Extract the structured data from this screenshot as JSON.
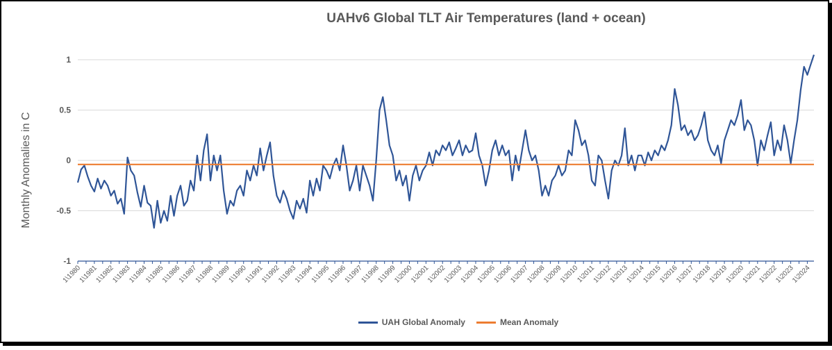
{
  "chart_data": {
    "type": "line",
    "title": "UAHv6 Global TLT Air Temperatures (land + ocean)",
    "ylabel": "Monthly Anomalies in C",
    "xlabel": "",
    "ylim": [
      -1,
      1
    ],
    "yticks": [
      1,
      0.5,
      0,
      -0.5,
      -1
    ],
    "ytick_labels": [
      "1",
      "0.5",
      "0",
      "-0.5",
      "-1"
    ],
    "grid": true,
    "legend": "bottom",
    "x_tick_labels": [
      "1\\1980",
      "1\\1981",
      "1\\1982",
      "1\\1983",
      "1\\1984",
      "1\\1985",
      "1\\1986",
      "1\\1987",
      "1\\1988",
      "1\\1989",
      "1\\1990",
      "1\\1991",
      "1\\1992",
      "1\\1993",
      "1\\1994",
      "1\\1995",
      "1\\1996",
      "1\\1997",
      "1\\1998",
      "1\\1999",
      "1\\2000",
      "1\\2001",
      "1\\2002",
      "1\\2003",
      "1\\2004",
      "1\\2005",
      "1\\2006",
      "1\\2007",
      "1\\2008",
      "1\\2009",
      "1\\2010",
      "1\\2011",
      "1\\2012",
      "1\\2013",
      "1\\2014",
      "1\\2015",
      "1\\2016",
      "1\\2017",
      "1\\2018",
      "1\\2019",
      "1\\2020",
      "1\\2021",
      "1\\2022",
      "1\\2023",
      "1\\2024"
    ],
    "series": [
      {
        "name": "UAH Global Anomaly",
        "color": "#2F5597",
        "points": [
          [
            1980.0,
            -0.22
          ],
          [
            1980.2,
            -0.09
          ],
          [
            1980.4,
            -0.05
          ],
          [
            1980.6,
            -0.16
          ],
          [
            1980.8,
            -0.25
          ],
          [
            1981.0,
            -0.31
          ],
          [
            1981.2,
            -0.18
          ],
          [
            1981.4,
            -0.28
          ],
          [
            1981.6,
            -0.2
          ],
          [
            1981.8,
            -0.25
          ],
          [
            1982.0,
            -0.35
          ],
          [
            1982.2,
            -0.3
          ],
          [
            1982.4,
            -0.43
          ],
          [
            1982.6,
            -0.38
          ],
          [
            1982.8,
            -0.53
          ],
          [
            1983.0,
            0.03
          ],
          [
            1983.2,
            -0.1
          ],
          [
            1983.4,
            -0.15
          ],
          [
            1983.6,
            -0.32
          ],
          [
            1983.8,
            -0.46
          ],
          [
            1984.0,
            -0.25
          ],
          [
            1984.2,
            -0.42
          ],
          [
            1984.4,
            -0.45
          ],
          [
            1984.6,
            -0.67
          ],
          [
            1984.8,
            -0.4
          ],
          [
            1985.0,
            -0.62
          ],
          [
            1985.2,
            -0.5
          ],
          [
            1985.4,
            -0.6
          ],
          [
            1985.6,
            -0.35
          ],
          [
            1985.8,
            -0.55
          ],
          [
            1986.0,
            -0.35
          ],
          [
            1986.2,
            -0.25
          ],
          [
            1986.4,
            -0.45
          ],
          [
            1986.6,
            -0.4
          ],
          [
            1986.8,
            -0.2
          ],
          [
            1987.0,
            -0.3
          ],
          [
            1987.2,
            0.05
          ],
          [
            1987.4,
            -0.2
          ],
          [
            1987.6,
            0.1
          ],
          [
            1987.8,
            0.26
          ],
          [
            1988.0,
            -0.2
          ],
          [
            1988.2,
            0.05
          ],
          [
            1988.4,
            -0.1
          ],
          [
            1988.6,
            0.05
          ],
          [
            1988.8,
            -0.3
          ],
          [
            1989.0,
            -0.53
          ],
          [
            1989.2,
            -0.4
          ],
          [
            1989.4,
            -0.45
          ],
          [
            1989.6,
            -0.3
          ],
          [
            1989.8,
            -0.25
          ],
          [
            1990.0,
            -0.35
          ],
          [
            1990.2,
            -0.1
          ],
          [
            1990.4,
            -0.2
          ],
          [
            1990.6,
            -0.05
          ],
          [
            1990.8,
            -0.15
          ],
          [
            1991.0,
            0.12
          ],
          [
            1991.2,
            -0.1
          ],
          [
            1991.4,
            0.05
          ],
          [
            1991.6,
            0.18
          ],
          [
            1991.8,
            -0.15
          ],
          [
            1992.0,
            -0.35
          ],
          [
            1992.2,
            -0.42
          ],
          [
            1992.4,
            -0.3
          ],
          [
            1992.6,
            -0.38
          ],
          [
            1992.8,
            -0.5
          ],
          [
            1993.0,
            -0.58
          ],
          [
            1993.2,
            -0.4
          ],
          [
            1993.4,
            -0.48
          ],
          [
            1993.6,
            -0.38
          ],
          [
            1993.8,
            -0.52
          ],
          [
            1994.0,
            -0.2
          ],
          [
            1994.2,
            -0.35
          ],
          [
            1994.4,
            -0.18
          ],
          [
            1994.6,
            -0.3
          ],
          [
            1994.8,
            -0.05
          ],
          [
            1995.0,
            -0.1
          ],
          [
            1995.2,
            -0.18
          ],
          [
            1995.4,
            -0.05
          ],
          [
            1995.6,
            0.02
          ],
          [
            1995.8,
            -0.1
          ],
          [
            1996.0,
            0.15
          ],
          [
            1996.2,
            -0.05
          ],
          [
            1996.4,
            -0.3
          ],
          [
            1996.6,
            -0.2
          ],
          [
            1996.8,
            -0.05
          ],
          [
            1997.0,
            -0.3
          ],
          [
            1997.2,
            -0.05
          ],
          [
            1997.4,
            -0.15
          ],
          [
            1997.6,
            -0.25
          ],
          [
            1997.8,
            -0.4
          ],
          [
            1998.0,
            0.0
          ],
          [
            1998.2,
            0.5
          ],
          [
            1998.4,
            0.63
          ],
          [
            1998.6,
            0.4
          ],
          [
            1998.8,
            0.15
          ],
          [
            1999.0,
            0.05
          ],
          [
            1999.2,
            -0.2
          ],
          [
            1999.4,
            -0.1
          ],
          [
            1999.6,
            -0.25
          ],
          [
            1999.8,
            -0.15
          ],
          [
            2000.0,
            -0.4
          ],
          [
            2000.2,
            -0.15
          ],
          [
            2000.4,
            -0.05
          ],
          [
            2000.6,
            -0.2
          ],
          [
            2000.8,
            -0.1
          ],
          [
            2001.0,
            -0.05
          ],
          [
            2001.2,
            0.08
          ],
          [
            2001.4,
            -0.05
          ],
          [
            2001.6,
            0.1
          ],
          [
            2001.8,
            0.05
          ],
          [
            2002.0,
            0.15
          ],
          [
            2002.2,
            0.1
          ],
          [
            2002.4,
            0.18
          ],
          [
            2002.6,
            0.05
          ],
          [
            2002.8,
            0.12
          ],
          [
            2003.0,
            0.2
          ],
          [
            2003.2,
            0.05
          ],
          [
            2003.4,
            0.15
          ],
          [
            2003.6,
            0.08
          ],
          [
            2003.8,
            0.1
          ],
          [
            2004.0,
            0.27
          ],
          [
            2004.2,
            0.05
          ],
          [
            2004.4,
            -0.05
          ],
          [
            2004.6,
            -0.25
          ],
          [
            2004.8,
            -0.1
          ],
          [
            2005.0,
            0.1
          ],
          [
            2005.2,
            0.2
          ],
          [
            2005.4,
            0.05
          ],
          [
            2005.6,
            0.15
          ],
          [
            2005.8,
            0.05
          ],
          [
            2006.0,
            0.1
          ],
          [
            2006.2,
            -0.2
          ],
          [
            2006.4,
            0.05
          ],
          [
            2006.6,
            -0.1
          ],
          [
            2006.8,
            0.1
          ],
          [
            2007.0,
            0.3
          ],
          [
            2007.2,
            0.1
          ],
          [
            2007.4,
            0.0
          ],
          [
            2007.6,
            0.05
          ],
          [
            2007.8,
            -0.1
          ],
          [
            2008.0,
            -0.35
          ],
          [
            2008.2,
            -0.25
          ],
          [
            2008.4,
            -0.35
          ],
          [
            2008.6,
            -0.2
          ],
          [
            2008.8,
            -0.15
          ],
          [
            2009.0,
            -0.05
          ],
          [
            2009.2,
            -0.15
          ],
          [
            2009.4,
            -0.1
          ],
          [
            2009.6,
            0.1
          ],
          [
            2009.8,
            0.05
          ],
          [
            2010.0,
            0.4
          ],
          [
            2010.2,
            0.3
          ],
          [
            2010.4,
            0.15
          ],
          [
            2010.6,
            0.2
          ],
          [
            2010.8,
            0.05
          ],
          [
            2011.0,
            -0.2
          ],
          [
            2011.2,
            -0.25
          ],
          [
            2011.4,
            0.05
          ],
          [
            2011.6,
            0.0
          ],
          [
            2011.8,
            -0.2
          ],
          [
            2012.0,
            -0.38
          ],
          [
            2012.2,
            -0.1
          ],
          [
            2012.4,
            0.0
          ],
          [
            2012.6,
            -0.05
          ],
          [
            2012.8,
            0.05
          ],
          [
            2013.0,
            0.32
          ],
          [
            2013.2,
            -0.05
          ],
          [
            2013.4,
            0.05
          ],
          [
            2013.6,
            -0.1
          ],
          [
            2013.8,
            0.05
          ],
          [
            2014.0,
            0.05
          ],
          [
            2014.2,
            -0.05
          ],
          [
            2014.4,
            0.08
          ],
          [
            2014.6,
            0.0
          ],
          [
            2014.8,
            0.1
          ],
          [
            2015.0,
            0.05
          ],
          [
            2015.2,
            0.15
          ],
          [
            2015.4,
            0.1
          ],
          [
            2015.6,
            0.2
          ],
          [
            2015.8,
            0.35
          ],
          [
            2016.0,
            0.71
          ],
          [
            2016.2,
            0.55
          ],
          [
            2016.4,
            0.3
          ],
          [
            2016.6,
            0.35
          ],
          [
            2016.8,
            0.25
          ],
          [
            2017.0,
            0.3
          ],
          [
            2017.2,
            0.2
          ],
          [
            2017.4,
            0.25
          ],
          [
            2017.6,
            0.35
          ],
          [
            2017.8,
            0.48
          ],
          [
            2018.0,
            0.2
          ],
          [
            2018.2,
            0.1
          ],
          [
            2018.4,
            0.05
          ],
          [
            2018.6,
            0.15
          ],
          [
            2018.8,
            -0.03
          ],
          [
            2019.0,
            0.2
          ],
          [
            2019.2,
            0.3
          ],
          [
            2019.4,
            0.4
          ],
          [
            2019.6,
            0.35
          ],
          [
            2019.8,
            0.45
          ],
          [
            2020.0,
            0.6
          ],
          [
            2020.2,
            0.3
          ],
          [
            2020.4,
            0.4
          ],
          [
            2020.6,
            0.35
          ],
          [
            2020.8,
            0.2
          ],
          [
            2021.0,
            -0.05
          ],
          [
            2021.2,
            0.2
          ],
          [
            2021.4,
            0.1
          ],
          [
            2021.6,
            0.25
          ],
          [
            2021.8,
            0.38
          ],
          [
            2022.0,
            0.05
          ],
          [
            2022.2,
            0.2
          ],
          [
            2022.4,
            0.1
          ],
          [
            2022.6,
            0.35
          ],
          [
            2022.8,
            0.2
          ],
          [
            2023.0,
            -0.03
          ],
          [
            2023.2,
            0.2
          ],
          [
            2023.4,
            0.4
          ],
          [
            2023.6,
            0.7
          ],
          [
            2023.8,
            0.93
          ],
          [
            2024.0,
            0.85
          ],
          [
            2024.2,
            0.95
          ],
          [
            2024.4,
            1.05
          ]
        ]
      },
      {
        "name": "Mean Anomaly",
        "color": "#ED7D31",
        "points": [
          [
            1980.0,
            -0.04
          ],
          [
            2024.4,
            -0.04
          ]
        ]
      }
    ]
  }
}
